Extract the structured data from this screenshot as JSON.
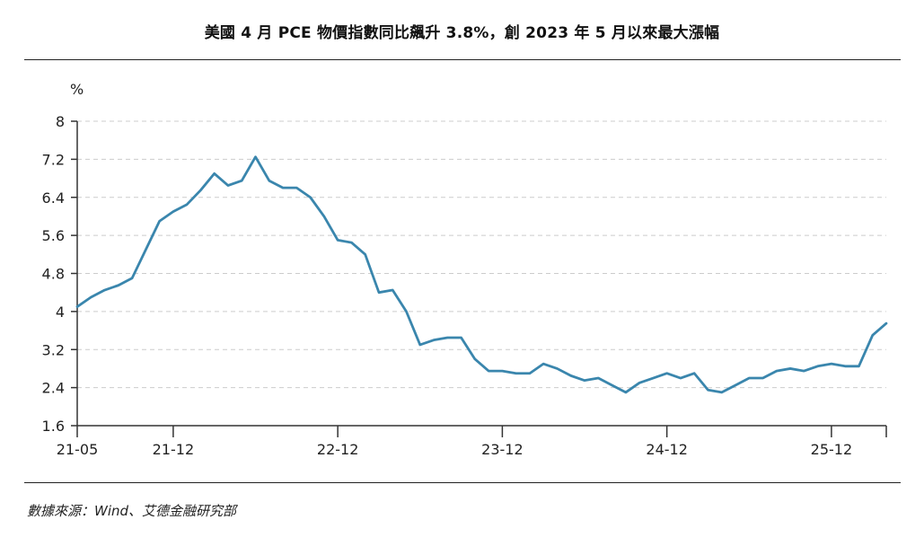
{
  "title": "美國 4 月 PCE 物價指數同比飆升 3.8%，創 2023 年 5 月以來最大漲幅",
  "source": "數據來源：Wind、艾德金融研究部",
  "colors": {
    "line": "#3a86ad",
    "axis": "#333333",
    "grid": "#cccccc"
  },
  "chart_data": {
    "type": "line",
    "unit_label": "%",
    "ylim": [
      1.6,
      8
    ],
    "y_ticks": [
      1.6,
      2.4,
      3.2,
      4,
      4.8,
      5.6,
      6.4,
      7.2,
      8
    ],
    "y_tick_labels": [
      "1.6",
      "2.4",
      "3.2",
      "4",
      "4.8",
      "5.6",
      "6.4",
      "7.2",
      "8"
    ],
    "x_tick_labels": [
      "21-05",
      "21-12",
      "22-12",
      "23-12",
      "24-12",
      "25-12"
    ],
    "x_tick_index": [
      0,
      7,
      19,
      31,
      43,
      55
    ],
    "grid": "horizontal dashed",
    "x": [
      "21-05",
      "21-06",
      "21-07",
      "21-08",
      "21-09",
      "21-10",
      "21-11",
      "21-12",
      "22-01",
      "22-02",
      "22-03",
      "22-04",
      "22-05",
      "22-06",
      "22-07",
      "22-08",
      "22-09",
      "22-10",
      "22-11",
      "22-12",
      "23-01",
      "23-02",
      "23-03",
      "23-04",
      "23-05",
      "23-06",
      "23-07",
      "23-08",
      "23-09",
      "23-10",
      "23-11",
      "23-12",
      "24-01",
      "24-02",
      "24-03",
      "24-04",
      "24-05",
      "24-06",
      "24-07",
      "24-08",
      "24-09",
      "24-10",
      "24-11",
      "24-12",
      "25-01",
      "25-02",
      "25-03",
      "25-04",
      "25-05",
      "25-06",
      "25-07",
      "25-08",
      "25-09",
      "25-10",
      "25-11",
      "25-12",
      "26-01",
      "26-02",
      "26-03",
      "26-04"
    ],
    "series": [
      {
        "values": [
          4.1,
          4.3,
          4.45,
          4.55,
          4.7,
          5.3,
          5.9,
          6.1,
          6.25,
          6.55,
          6.9,
          6.65,
          6.75,
          7.25,
          6.75,
          6.6,
          6.6,
          6.4,
          6.0,
          5.5,
          5.45,
          5.2,
          4.4,
          4.45,
          4.0,
          3.3,
          3.4,
          3.45,
          3.45,
          3.0,
          2.75,
          2.75,
          2.7,
          2.7,
          2.9,
          2.8,
          2.65,
          2.55,
          2.6,
          2.45,
          2.3,
          2.5,
          2.6,
          2.7,
          2.6,
          2.7,
          2.35,
          2.3,
          2.45,
          2.6,
          2.6,
          2.75,
          2.8,
          2.75,
          2.85,
          2.9,
          2.85,
          2.85,
          3.5,
          3.75
        ]
      }
    ]
  }
}
